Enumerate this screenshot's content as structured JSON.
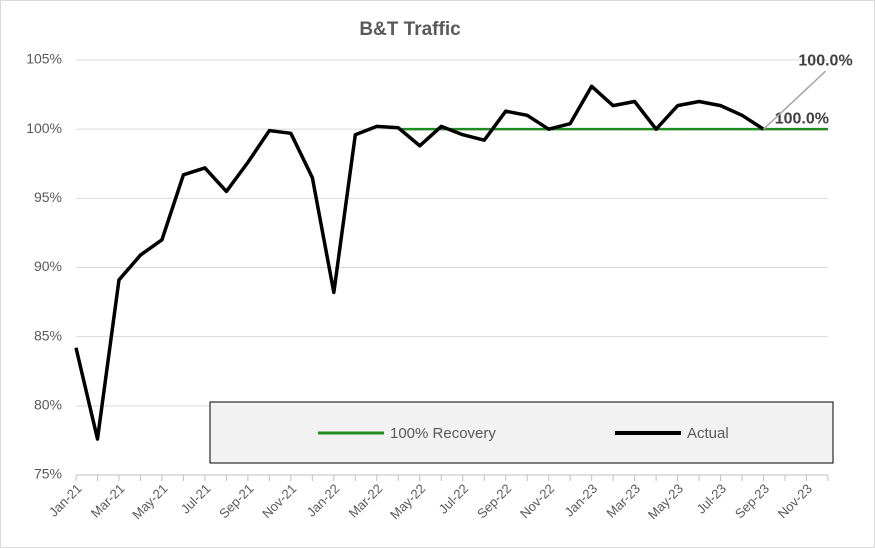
{
  "chart_data": {
    "type": "line",
    "title": "B&T Traffic",
    "categories": [
      "Jan-21",
      null,
      "Mar-21",
      null,
      "May-21",
      null,
      "Jul-21",
      null,
      "Sep-21",
      null,
      "Nov-21",
      null,
      "Jan-22",
      null,
      "Mar-22",
      null,
      "May-22",
      null,
      "Jul-22",
      null,
      "Sep-22",
      null,
      "Nov-22",
      null,
      "Jan-23",
      null,
      "Mar-23",
      null,
      "May-23",
      null,
      "Jul-23",
      null,
      "Sep-23",
      null,
      "Nov-23",
      null
    ],
    "series": [
      {
        "name": "100% Recovery",
        "color": "#228b22",
        "values": [
          null,
          null,
          null,
          null,
          null,
          null,
          null,
          null,
          null,
          null,
          null,
          null,
          null,
          null,
          null,
          100,
          100,
          100,
          100,
          100,
          100,
          100,
          100,
          100,
          100,
          100,
          100,
          100,
          100,
          100,
          100,
          100,
          100,
          100,
          100,
          100
        ],
        "value_labels": [
          null,
          null,
          null,
          null,
          null,
          null,
          null,
          null,
          null,
          null,
          null,
          null,
          null,
          null,
          null,
          null,
          null,
          null,
          null,
          null,
          null,
          null,
          null,
          null,
          null,
          null,
          null,
          null,
          null,
          null,
          null,
          null,
          null,
          null,
          null,
          "100.0%"
        ]
      },
      {
        "name": "Actual",
        "color": "#000000",
        "values": [
          84.2,
          77.6,
          89.1,
          90.9,
          92.0,
          96.7,
          97.2,
          95.5,
          97.6,
          99.9,
          99.7,
          96.5,
          88.2,
          99.6,
          100.2,
          100.1,
          98.8,
          100.2,
          99.6,
          99.2,
          101.3,
          101.0,
          100.0,
          100.4,
          103.1,
          101.7,
          102.0,
          100.0,
          101.7,
          102.0,
          101.7,
          101.0,
          100.0,
          null,
          null,
          null
        ],
        "value_labels": [
          null,
          null,
          null,
          null,
          null,
          null,
          null,
          null,
          null,
          null,
          null,
          null,
          null,
          null,
          null,
          null,
          null,
          null,
          null,
          null,
          null,
          null,
          null,
          null,
          null,
          null,
          null,
          null,
          null,
          null,
          null,
          null,
          "100.0%",
          null,
          null,
          null
        ]
      }
    ],
    "ylim": [
      75,
      105
    ],
    "yticks": [
      {
        "value": 75,
        "label": "75%"
      },
      {
        "value": 80,
        "label": "80%"
      },
      {
        "value": 85,
        "label": "85%"
      },
      {
        "value": 90,
        "label": "90%"
      },
      {
        "value": 95,
        "label": "95%"
      },
      {
        "value": 100,
        "label": "100%"
      },
      {
        "value": 105,
        "label": "105%"
      }
    ],
    "grid": true,
    "legend": "bottom"
  }
}
